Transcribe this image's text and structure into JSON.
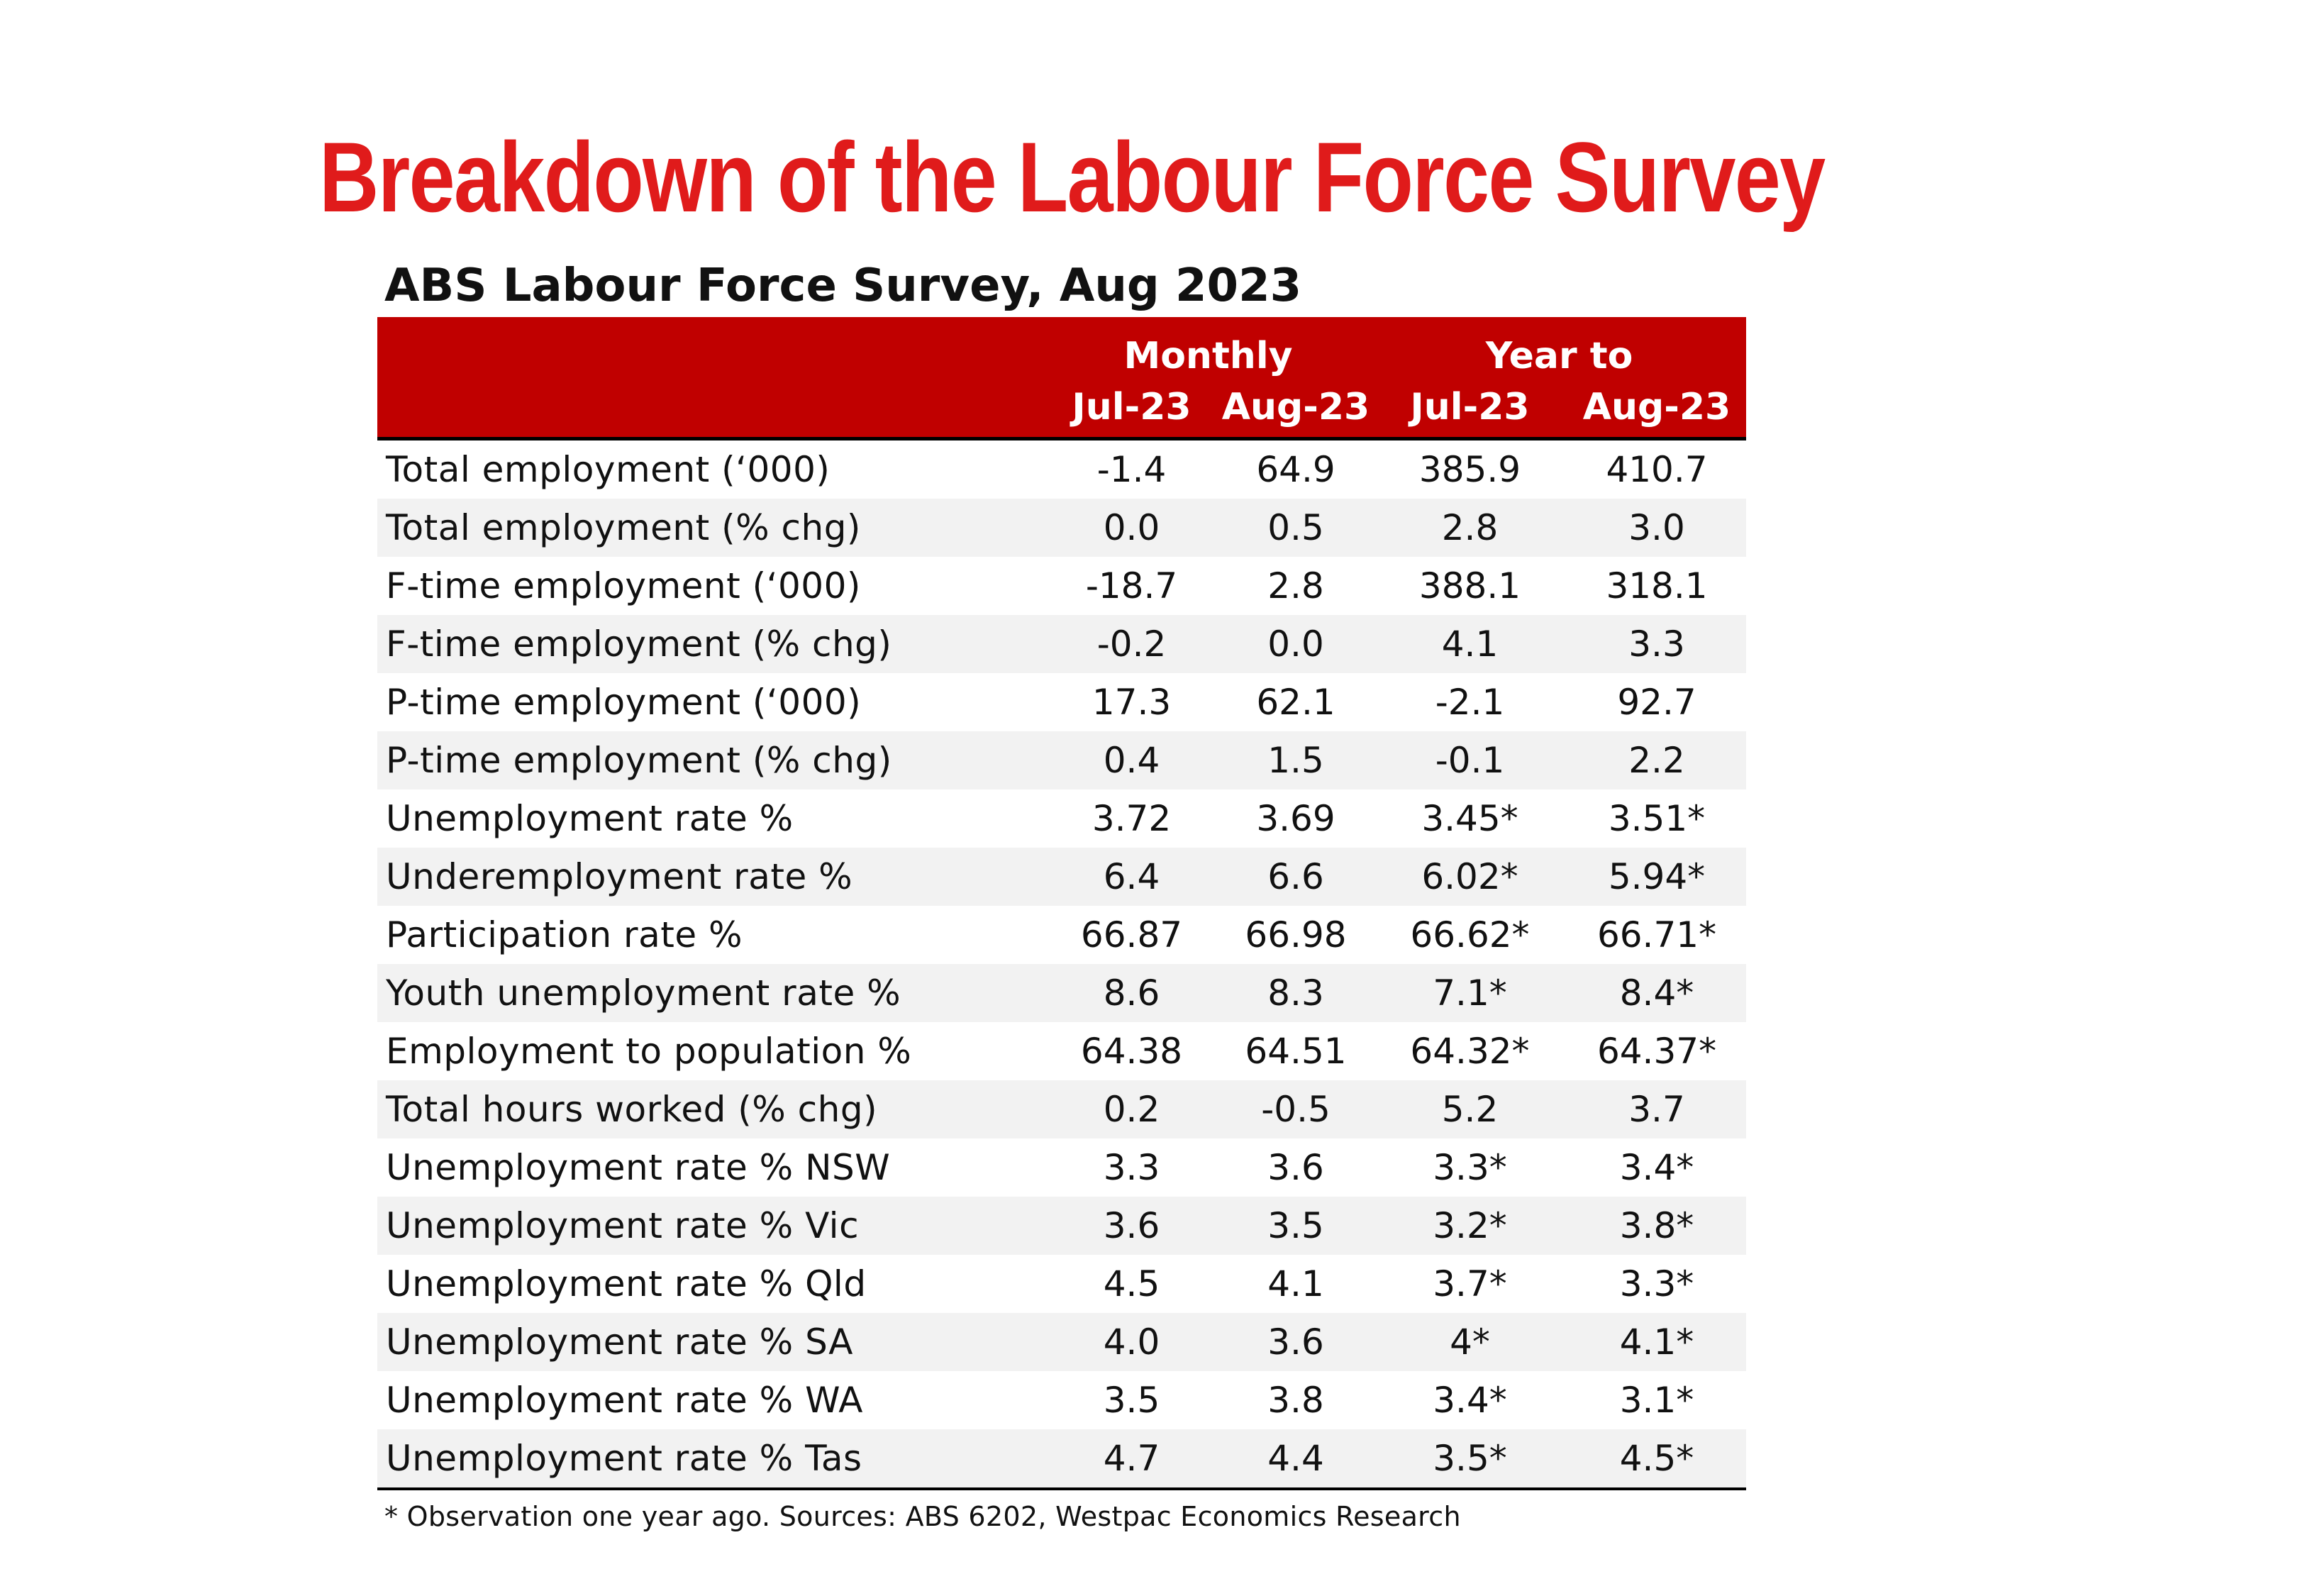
{
  "title": "Breakdown of the Labour Force Survey",
  "colors": {
    "title": "#e01b1b",
    "header_bg": "#c00000",
    "stripe": "#f2f2f2"
  },
  "chart_data": {
    "type": "table",
    "subtitle": "ABS Labour Force Survey, Aug 2023",
    "column_groups": [
      "Monthly",
      "Year to"
    ],
    "columns": [
      "Jul-23",
      "Aug-23",
      "Jul-23",
      "Aug-23"
    ],
    "rows": [
      {
        "label": "Total employment (‘000)",
        "values": [
          "-1.4",
          "64.9",
          "385.9",
          "410.7"
        ]
      },
      {
        "label": "Total employment (% chg)",
        "values": [
          "0.0",
          "0.5",
          "2.8",
          "3.0"
        ]
      },
      {
        "label": "F-time employment (‘000)",
        "values": [
          "-18.7",
          "2.8",
          "388.1",
          "318.1"
        ]
      },
      {
        "label": "F-time employment (% chg)",
        "values": [
          "-0.2",
          "0.0",
          "4.1",
          "3.3"
        ]
      },
      {
        "label": "P-time employment (‘000)",
        "values": [
          "17.3",
          "62.1",
          "-2.1",
          "92.7"
        ]
      },
      {
        "label": "P-time employment (% chg)",
        "values": [
          "0.4",
          "1.5",
          "-0.1",
          "2.2"
        ]
      },
      {
        "label": "Unemployment rate %",
        "values": [
          "3.72",
          "3.69",
          "3.45*",
          "3.51*"
        ]
      },
      {
        "label": "Underemployment rate %",
        "values": [
          "6.4",
          "6.6",
          "6.02*",
          "5.94*"
        ]
      },
      {
        "label": "Participation rate %",
        "values": [
          "66.87",
          "66.98",
          "66.62*",
          "66.71*"
        ]
      },
      {
        "label": "Youth unemployment rate %",
        "values": [
          "8.6",
          "8.3",
          "7.1*",
          "8.4*"
        ]
      },
      {
        "label": "Employment to population %",
        "values": [
          "64.38",
          "64.51",
          "64.32*",
          "64.37*"
        ]
      },
      {
        "label": "Total hours worked (% chg)",
        "values": [
          "0.2",
          "-0.5",
          "5.2",
          "3.7"
        ]
      },
      {
        "label": "Unemployment rate % NSW",
        "values": [
          "3.3",
          "3.6",
          "3.3*",
          "3.4*"
        ]
      },
      {
        "label": "Unemployment rate % Vic",
        "values": [
          "3.6",
          "3.5",
          "3.2*",
          "3.8*"
        ]
      },
      {
        "label": "Unemployment rate % Qld",
        "values": [
          "4.5",
          "4.1",
          "3.7*",
          "3.3*"
        ]
      },
      {
        "label": "Unemployment rate % SA",
        "values": [
          "4.0",
          "3.6",
          "4*",
          "4.1*"
        ]
      },
      {
        "label": "Unemployment rate % WA",
        "values": [
          "3.5",
          "3.8",
          "3.4*",
          "3.1*"
        ]
      },
      {
        "label": "Unemployment rate % Tas",
        "values": [
          "4.7",
          "4.4",
          "3.5*",
          "4.5*"
        ]
      }
    ],
    "footnote": "* Observation one year ago.  Sources: ABS 6202, Westpac Economics Research"
  }
}
